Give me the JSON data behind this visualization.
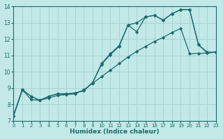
{
  "xlabel": "Humidex (Indice chaleur)",
  "bg_color": "#c2e8e8",
  "grid_color": "#a8d4d4",
  "line_color": "#1a6b6b",
  "xlim": [
    0,
    23
  ],
  "ylim": [
    7,
    14
  ],
  "yticks": [
    7,
    8,
    9,
    10,
    11,
    12,
    13,
    14
  ],
  "xticks": [
    0,
    1,
    2,
    3,
    4,
    5,
    6,
    7,
    8,
    9,
    10,
    11,
    12,
    13,
    14,
    15,
    16,
    17,
    18,
    19,
    20,
    21,
    22,
    23
  ],
  "line1_x": [
    0,
    1,
    2,
    3,
    4,
    5,
    6,
    7,
    8,
    9,
    10,
    11,
    12,
    13,
    14,
    15,
    16,
    17,
    18,
    19,
    20,
    21,
    22,
    23
  ],
  "line1_y": [
    7.3,
    8.9,
    8.5,
    8.25,
    8.5,
    8.65,
    8.65,
    8.7,
    8.85,
    9.35,
    10.45,
    11.05,
    11.55,
    12.85,
    12.45,
    13.35,
    13.45,
    13.15,
    13.55,
    13.8,
    13.8,
    11.65,
    11.15,
    11.2
  ],
  "line2_x": [
    0,
    1,
    2,
    3,
    4,
    5,
    6,
    7,
    8,
    9,
    10,
    11,
    12,
    13,
    14,
    15,
    16,
    17,
    18,
    19,
    20,
    21,
    22,
    23
  ],
  "line2_y": [
    7.3,
    8.9,
    8.5,
    8.25,
    8.5,
    8.65,
    8.65,
    8.7,
    8.85,
    9.35,
    10.5,
    11.1,
    11.6,
    12.85,
    13.0,
    13.35,
    13.45,
    13.15,
    13.55,
    13.8,
    13.8,
    11.65,
    11.2,
    11.2
  ],
  "line3_x": [
    0,
    1,
    2,
    3,
    4,
    5,
    6,
    7,
    8,
    9,
    10,
    11,
    12,
    13,
    14,
    15,
    16,
    17,
    18,
    19,
    20,
    21,
    22,
    23
  ],
  "line3_y": [
    7.3,
    8.9,
    8.3,
    8.25,
    8.4,
    8.55,
    8.6,
    8.65,
    8.9,
    9.3,
    9.7,
    10.1,
    10.5,
    10.9,
    11.25,
    11.55,
    11.85,
    12.1,
    12.4,
    12.65,
    11.1,
    11.12,
    11.15,
    11.2
  ]
}
